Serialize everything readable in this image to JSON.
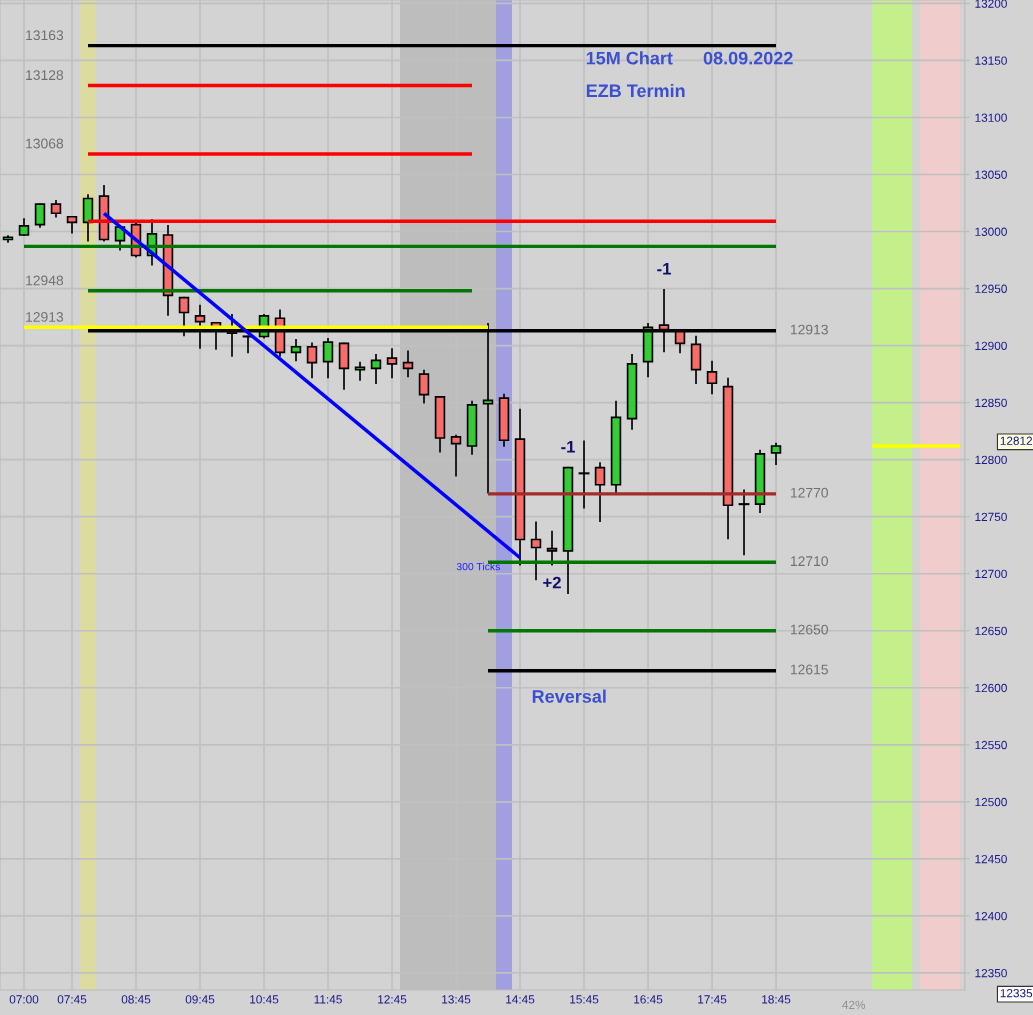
{
  "chart_data": {
    "type": "candlestick",
    "title": "15M Chart      08.09.2022",
    "subtitle": "EZB Termin",
    "x": [
      6.75,
      7.0,
      7.25,
      7.5,
      7.75,
      8.0,
      8.25,
      8.5,
      8.75,
      9.0,
      9.25,
      9.5,
      9.75,
      10.0,
      10.25,
      10.5,
      10.75,
      11.0,
      11.25,
      11.5,
      11.75,
      12.0,
      12.25,
      12.5,
      12.75,
      13.0,
      13.25,
      13.5,
      13.75,
      14.0,
      14.25,
      14.5,
      14.75,
      15.0,
      15.25,
      15.5,
      15.75,
      16.0,
      16.25,
      16.5,
      16.75,
      17.0,
      17.25,
      17.5,
      17.75,
      18.0,
      18.25,
      18.5,
      18.75
    ],
    "ohlc": [
      [
        12993,
        12996,
        12991,
        12995
      ],
      [
        12997,
        13011,
        12997,
        13005
      ],
      [
        13006,
        13024,
        13004,
        13024
      ],
      [
        13024,
        13027,
        13013,
        13016
      ],
      [
        13013,
        13013,
        12999,
        13008
      ],
      [
        13008,
        13032,
        12992,
        13029
      ],
      [
        13031,
        13040,
        12992,
        12993
      ],
      [
        12992,
        13004,
        12984,
        13004
      ],
      [
        13006,
        13008,
        12978,
        12979
      ],
      [
        12979,
        13010,
        12971,
        12998
      ],
      [
        12997,
        13005,
        12927,
        12944
      ],
      [
        12942,
        12942,
        12909,
        12929
      ],
      [
        12926,
        12935,
        12898,
        12921
      ],
      [
        12920,
        12920,
        12897,
        12913
      ],
      [
        12913,
        12927,
        12891,
        12911
      ],
      [
        12908,
        12908,
        12894,
        12908
      ],
      [
        12908,
        12927,
        12907,
        12926
      ],
      [
        12924,
        12931,
        12891,
        12894
      ],
      [
        12894,
        12905,
        12887,
        12899
      ],
      [
        12899,
        12902,
        12872,
        12885
      ],
      [
        12886,
        12906,
        12872,
        12903
      ],
      [
        12902,
        12902,
        12862,
        12880
      ],
      [
        12879,
        12885,
        12870,
        12881
      ],
      [
        12880,
        12892,
        12867,
        12887
      ],
      [
        12889,
        12897,
        12872,
        12884
      ],
      [
        12885,
        12895,
        12873,
        12880
      ],
      [
        12875,
        12878,
        12850,
        12857
      ],
      [
        12855,
        12855,
        12807,
        12819
      ],
      [
        12820,
        12821,
        12786,
        12814
      ],
      [
        12812,
        12851,
        12805,
        12848
      ],
      [
        12849,
        12919,
        12771,
        12852
      ],
      [
        12854,
        12857,
        12812,
        12817
      ],
      [
        12818,
        12844,
        12708,
        12730
      ],
      [
        12730,
        12745,
        12695,
        12723
      ],
      [
        12722,
        12737,
        12708,
        12720
      ],
      [
        12720,
        12793,
        12683,
        12793
      ],
      [
        12788,
        12816,
        12758,
        12788
      ],
      [
        12793,
        12797,
        12746,
        12778
      ],
      [
        12778,
        12851,
        12770,
        12837
      ],
      [
        12836,
        12892,
        12827,
        12884
      ],
      [
        12886,
        12919,
        12873,
        12916
      ],
      [
        12918,
        12949,
        12895,
        12914
      ],
      [
        12913,
        12913,
        12894,
        12902
      ],
      [
        12901,
        12908,
        12867,
        12879
      ],
      [
        12877,
        12886,
        12858,
        12867
      ],
      [
        12864,
        12871,
        12731,
        12760
      ],
      [
        12761,
        12773,
        12717,
        12761
      ],
      [
        12761,
        12808,
        12754,
        12805
      ],
      [
        12806,
        12814,
        12796,
        12812
      ]
    ],
    "colors": [
      "#33cc33",
      "#33cc33",
      "#33cc33",
      "#f76b6b",
      "#f76b6b",
      "#33cc33",
      "#f76b6b",
      "#33cc33",
      "#f76b6b",
      "#33cc33",
      "#f76b6b",
      "#f76b6b",
      "#f76b6b",
      "#f76b6b",
      "#f76b6b",
      "#000000",
      "#33cc33",
      "#f76b6b",
      "#33cc33",
      "#f76b6b",
      "#33cc33",
      "#f76b6b",
      "#33cc33",
      "#33cc33",
      "#f76b6b",
      "#f76b6b",
      "#f76b6b",
      "#f76b6b",
      "#f76b6b",
      "#33cc33",
      "#33cc33",
      "#f76b6b",
      "#f76b6b",
      "#f76b6b",
      "#f76b6b",
      "#33cc33",
      "#000000",
      "#f76b6b",
      "#33cc33",
      "#33cc33",
      "#33cc33",
      "#f76b6b",
      "#f76b6b",
      "#f76b6b",
      "#f76b6b",
      "#f76b6b",
      "#000000",
      "#33cc33",
      "#33cc33"
    ],
    "series": [
      {
        "type": "line",
        "name": "13163",
        "color": "#000000",
        "x": [
          8.0,
          18.75
        ],
        "values": [
          13163,
          13163
        ]
      },
      {
        "type": "line",
        "name": "13128",
        "color": "#ff0000",
        "x": [
          8.0,
          14.0
        ],
        "values": [
          13128,
          13128
        ]
      },
      {
        "type": "line",
        "name": "13068",
        "color": "#ff0000",
        "x": [
          8.0,
          14.0
        ],
        "values": [
          13068,
          13068
        ]
      },
      {
        "type": "line",
        "color": "#ff0000",
        "x": [
          8.0,
          18.75
        ],
        "values": [
          13009,
          13009
        ]
      },
      {
        "type": "line",
        "color": "#007700",
        "x": [
          7.0,
          18.75
        ],
        "values": [
          12987,
          12987
        ]
      },
      {
        "type": "line",
        "name": "12948",
        "color": "#007700",
        "x": [
          8.0,
          14.0
        ],
        "values": [
          12948,
          12948
        ]
      },
      {
        "type": "line",
        "name": "12913",
        "color": "#ffff00",
        "x": [
          7.0,
          14.25
        ],
        "values": [
          12916,
          12916
        ]
      },
      {
        "type": "line",
        "name": "12913",
        "color": "#000000",
        "x": [
          8.0,
          18.75
        ],
        "values": [
          12913,
          12913
        ]
      },
      {
        "type": "line",
        "name": "12770",
        "color": "#a52a2a",
        "x": [
          14.25,
          18.75
        ],
        "values": [
          12770,
          12770
        ]
      },
      {
        "type": "line",
        "name": "12710",
        "color": "#007700",
        "x": [
          14.25,
          18.75
        ],
        "values": [
          12710,
          12710
        ]
      },
      {
        "type": "line",
        "name": "12650",
        "color": "#007700",
        "x": [
          14.25,
          18.75
        ],
        "values": [
          12650,
          12650
        ]
      },
      {
        "type": "line",
        "name": "12615",
        "color": "#000000",
        "x": [
          14.25,
          18.75
        ],
        "values": [
          12615,
          12615
        ]
      },
      {
        "type": "line",
        "color": "#0000ff",
        "x": [
          8.25,
          14.75
        ],
        "values": [
          13016,
          12714
        ]
      },
      {
        "type": "line",
        "color": "#ffff00",
        "x": [
          20.25,
          21.625
        ],
        "values": [
          12812,
          12812
        ]
      }
    ],
    "bands": [
      {
        "axis": "x",
        "from": 7.875,
        "to": 8.125,
        "color": "#dcdca0"
      },
      {
        "axis": "x",
        "from": 12.875,
        "to": 14.375,
        "color": "#bdbdbd"
      },
      {
        "axis": "x",
        "from": 14.375,
        "to": 14.625,
        "color": "#a0a0e0"
      },
      {
        "axis": "x",
        "from": 20.25,
        "to": 20.875,
        "color": "#c4f08c"
      },
      {
        "axis": "x",
        "from": 21.0,
        "to": 21.625,
        "color": "#f0cccc"
      }
    ],
    "annotations": [
      {
        "text": "-1",
        "x": 17.0,
        "y": 12949
      },
      {
        "text": "-1",
        "x": 15.5,
        "y": 12793
      },
      {
        "text": "+2",
        "x": 15.25,
        "y": 12708
      },
      {
        "text": "300 Ticks",
        "x": 14.75,
        "y": 12714
      },
      "Reversal",
      "12812",
      "12335",
      "42%"
    ],
    "xlim": [
      6.625,
      21.7
    ],
    "ylim": [
      12335,
      13203
    ],
    "xticks": [
      {
        "value": 7.0,
        "label": "07:00"
      },
      {
        "value": 7.75,
        "label": "07:45"
      },
      {
        "value": 8.75,
        "label": "08:45"
      },
      {
        "value": 9.75,
        "label": "09:45"
      },
      {
        "value": 10.75,
        "label": "10:45"
      },
      {
        "value": 11.75,
        "label": "11:45"
      },
      {
        "value": 12.75,
        "label": "12:45"
      },
      {
        "value": 13.75,
        "label": "13:45"
      },
      {
        "value": 14.75,
        "label": "14:45"
      },
      {
        "value": 15.75,
        "label": "15:45"
      },
      {
        "value": 16.75,
        "label": "16:45"
      },
      {
        "value": 17.75,
        "label": "17:45"
      },
      {
        "value": 18.75,
        "label": "18:45"
      }
    ],
    "yticks": [
      12350,
      12400,
      12450,
      12500,
      12550,
      12600,
      12650,
      12700,
      12750,
      12800,
      12850,
      12900,
      12950,
      13000,
      13050,
      13100,
      13150,
      13200
    ],
    "grid": true
  }
}
